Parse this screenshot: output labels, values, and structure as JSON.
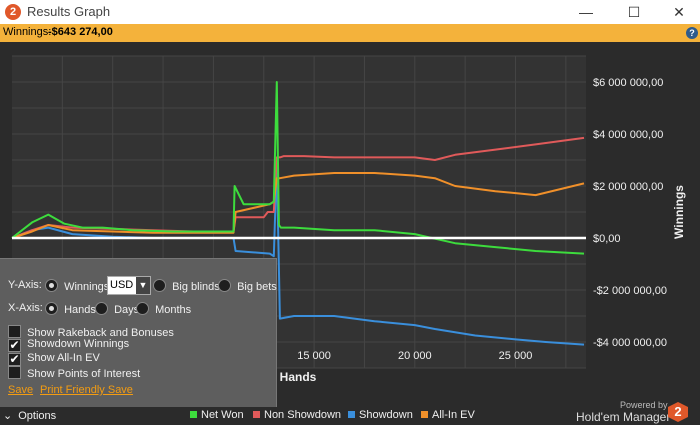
{
  "window": {
    "title": "Results Graph",
    "minimize_glyph": "—",
    "maximize_glyph": "☐",
    "close_glyph": "✕",
    "icon_glyph": "2"
  },
  "winnings_bar": {
    "label": "Winnings:",
    "value": "-$643 274,00",
    "help_glyph": "?"
  },
  "chart_data": {
    "type": "line",
    "xlabel": "Hands",
    "ylabel": "Winnings",
    "xlim": [
      0,
      28500
    ],
    "ylim": [
      -5000000,
      7000000
    ],
    "x_ticks": [
      15000,
      20000,
      25000
    ],
    "x_tick_labels": [
      "15 000",
      "20 000",
      "25 000"
    ],
    "y_ticks": [
      6000000,
      4000000,
      2000000,
      0,
      -2000000,
      -4000000
    ],
    "y_tick_labels": [
      "$6 000 000,00",
      "$4 000 000,00",
      "$2 000 000,00",
      "$0,00",
      "-$2 000 000,00",
      "-$4 000 000,00"
    ],
    "grid": true,
    "series": [
      {
        "name": "Net Won",
        "color": "#3ddc3d",
        "x": [
          0,
          1000,
          1800,
          2600,
          3500,
          4500,
          6000,
          8000,
          10000,
          11000,
          11050,
          11500,
          12800,
          13000,
          13150,
          13250,
          13350,
          14000,
          16000,
          18000,
          20000,
          22000,
          24000,
          26000,
          28400
        ],
        "y": [
          0,
          600000,
          900000,
          550000,
          400000,
          400000,
          300000,
          250000,
          250000,
          250000,
          2000000,
          1300000,
          1300000,
          1400000,
          6000000,
          500000,
          400000,
          400000,
          300000,
          300000,
          150000,
          -200000,
          -350000,
          -500000,
          -600000
        ]
      },
      {
        "name": "Non Showdown",
        "color": "#e05a5a",
        "x": [
          0,
          1000,
          1800,
          3000,
          5000,
          7000,
          9000,
          11000,
          11100,
          12500,
          12700,
          13000,
          13150,
          13300,
          13500,
          14500,
          16000,
          18000,
          20000,
          21000,
          22000,
          24000,
          26000,
          28400
        ],
        "y": [
          0,
          300000,
          500000,
          400000,
          350000,
          300000,
          250000,
          250000,
          800000,
          800000,
          1000000,
          1000000,
          3100000,
          3100000,
          3150000,
          3150000,
          3100000,
          3100000,
          3100000,
          3000000,
          3200000,
          3400000,
          3600000,
          3850000
        ]
      },
      {
        "name": "Showdown",
        "color": "#3a8fdc",
        "x": [
          0,
          1000,
          1800,
          3000,
          5000,
          7000,
          9000,
          11000,
          11100,
          12800,
          13000,
          13150,
          13300,
          14000,
          16000,
          18000,
          20000,
          21000,
          23000,
          25000,
          26500,
          28400
        ],
        "y": [
          0,
          300000,
          400000,
          150000,
          50000,
          0,
          0,
          0,
          -500000,
          -600000,
          -700000,
          2900000,
          -3100000,
          -3000000,
          -3000000,
          -3200000,
          -3350000,
          -3500000,
          -3750000,
          -3900000,
          -4000000,
          -4100000
        ]
      },
      {
        "name": "All-In EV",
        "color": "#f0902a",
        "x": [
          0,
          1000,
          1800,
          3000,
          5000,
          7000,
          9000,
          11000,
          11100,
          12800,
          13000,
          13150,
          13300,
          14000,
          16000,
          18000,
          20000,
          21000,
          22000,
          24000,
          26000,
          28400
        ],
        "y": [
          0,
          250000,
          500000,
          300000,
          250000,
          200000,
          200000,
          200000,
          1000000,
          1300000,
          1400000,
          2300000,
          2300000,
          2400000,
          2500000,
          2500000,
          2400000,
          2300000,
          2000000,
          1800000,
          1650000,
          2100000
        ]
      }
    ]
  },
  "options": {
    "yaxis_label": "Y-Axis:",
    "y_winnings": "Winnings",
    "currency": "USD",
    "y_bigblinds": "Big blinds",
    "y_bigbets": "Big bets",
    "xaxis_label": "X-Axis:",
    "x_hands": "Hands",
    "x_days": "Days",
    "x_months": "Months",
    "show_rakeback": "Show Rakeback and Bonuses",
    "showdown_winnings": "Showdown Winnings",
    "show_allin_ev": "Show All-In EV",
    "show_points": "Show Points of Interest",
    "save": "Save",
    "print_friendly": "Print Friendly Save",
    "check_glyph": "✔",
    "dropdown_glyph": "▼"
  },
  "footer": {
    "options_label": "Options",
    "options_glyph": "⌄",
    "powered_by": "Powered by",
    "brand": "Hold'em Manager",
    "brand_glyph": "2"
  }
}
